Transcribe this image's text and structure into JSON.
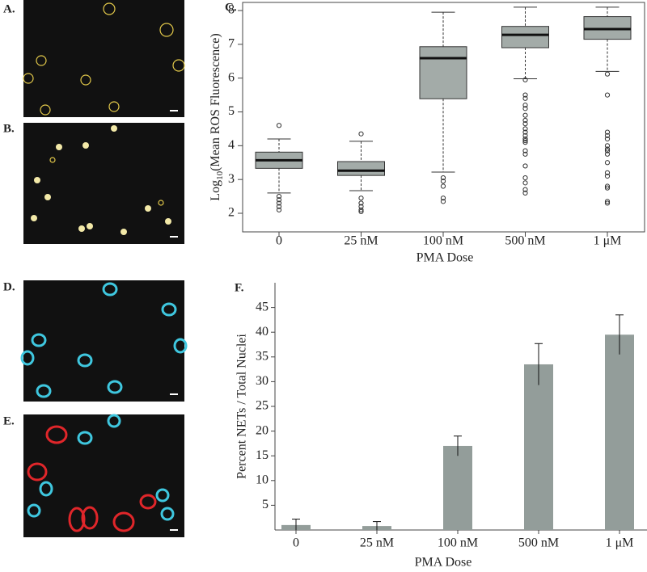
{
  "panels": {
    "A": "A.",
    "B": "B.",
    "D": "D.",
    "E": "E."
  },
  "chart_data": [
    {
      "type": "box",
      "panel_label": "C.",
      "categories": [
        "0",
        "25 nM",
        "100 nM",
        "500 nM",
        "1 μM"
      ],
      "color": "#a3aba8",
      "boxes": [
        {
          "min": 2.6,
          "q1": 3.33,
          "median": 3.57,
          "q3": 3.81,
          "max": 4.2,
          "outliers": [
            4.6,
            2.5,
            2.4,
            2.3,
            2.2,
            2.1
          ]
        },
        {
          "min": 2.67,
          "q1": 3.12,
          "median": 3.26,
          "q3": 3.53,
          "max": 4.13,
          "outliers": [
            4.35,
            2.45,
            2.3,
            2.2,
            2.1,
            2.05
          ]
        },
        {
          "min": 3.22,
          "q1": 5.39,
          "median": 6.59,
          "q3": 6.93,
          "max": 7.95,
          "outliers": [
            3.05,
            2.95,
            2.8,
            2.45,
            2.35
          ]
        },
        {
          "min": 5.98,
          "q1": 6.9,
          "median": 7.28,
          "q3": 7.53,
          "max": 8.1,
          "outliers": [
            5.95,
            5.5,
            5.4,
            5.2,
            5.1,
            4.9,
            4.75,
            4.65,
            4.5,
            4.4,
            4.3,
            4.2,
            4.15,
            4.1,
            3.85,
            3.75,
            3.4,
            3.05,
            2.9,
            2.7,
            2.6
          ]
        },
        {
          "min": 6.2,
          "q1": 7.15,
          "median": 7.45,
          "q3": 7.82,
          "max": 8.1,
          "outliers": [
            6.12,
            5.5,
            4.4,
            4.3,
            4.2,
            4.0,
            3.9,
            3.85,
            3.75,
            3.5,
            3.2,
            3.1,
            2.8,
            2.75,
            2.35,
            2.3
          ]
        }
      ],
      "xlabel": "PMA Dose",
      "ylabel": [
        "Log",
        "10",
        "(Mean ROS Fluorescence)"
      ],
      "ylim": [
        1.45,
        8.24
      ],
      "yticks": [
        2,
        3,
        4,
        5,
        6,
        7,
        8
      ]
    },
    {
      "type": "bar",
      "panel_label": "F.",
      "categories": [
        "0",
        "25 nM",
        "100 nM",
        "500 nM",
        "1 μM"
      ],
      "values": [
        1.0,
        0.8,
        17.0,
        33.5,
        39.5
      ],
      "errors": [
        1.2,
        0.9,
        2.0,
        4.2,
        4.0
      ],
      "color": "#939d9a",
      "xlabel": "PMA Dose",
      "ylabel": "Percent NETs / Total Nuclei",
      "ylim": [
        0,
        50
      ],
      "yticks": [
        5,
        10,
        15,
        20,
        25,
        30,
        35,
        40,
        45
      ]
    }
  ]
}
